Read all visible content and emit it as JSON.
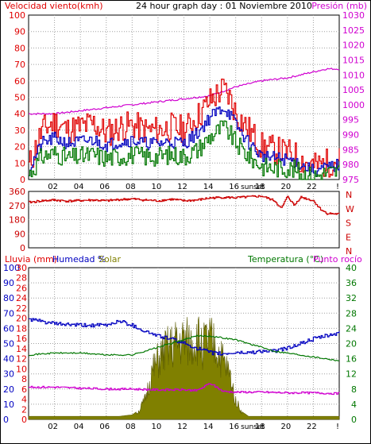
{
  "header": {
    "wind_title": "Velocidad viento(kmh)",
    "page_title": "24 hour graph day : 01 Noviembre 2010",
    "pressure_title": "Presión (mb)"
  },
  "bottom_header": {
    "rain_label": "Lluvia (mm)",
    "humidity_label": "Humedad %",
    "solar_label": "Solar",
    "temperature_label": "Temperatura (°C)",
    "dewpoint_label": "Punto rocío"
  },
  "sunset_label": "sunset",
  "colors": {
    "wind_gust": "#e00000",
    "wind_avg": "#0000c0",
    "wind_min": "#007700",
    "pressure": "#d000d0",
    "direction": "#cc0000",
    "humidity": "#0000c0",
    "temperature": "#007700",
    "dewpoint": "#d000d0",
    "solar": "#808000",
    "grid": "#a0a0a0"
  },
  "chart_data": [
    {
      "type": "line",
      "name": "wind-pressure",
      "title": "Velocidad viento(kmh)",
      "y2label": "Presión (mb)",
      "x_ticks": [
        "02",
        "04",
        "06",
        "08",
        "10",
        "12",
        "14",
        "16",
        "18",
        "20",
        "22",
        "!"
      ],
      "ylim": [
        0,
        100
      ],
      "y_ticks": [
        0,
        10,
        20,
        30,
        40,
        50,
        60,
        70,
        80,
        90,
        100
      ],
      "y2lim": [
        975,
        1030
      ],
      "y2_ticks": [
        975,
        980,
        985,
        990,
        995,
        1000,
        1005,
        1010,
        1015,
        1020,
        1025,
        1030
      ],
      "grid": true,
      "series": [
        {
          "key": "gust",
          "axis": "left",
          "x": [
            0,
            1,
            2,
            3,
            4,
            5,
            6,
            7,
            8,
            9,
            10,
            11,
            12,
            13,
            14,
            15,
            15.5,
            16,
            17,
            18,
            19,
            20,
            20.5,
            21,
            22,
            23,
            24
          ],
          "values": [
            8,
            30,
            35,
            30,
            32,
            34,
            28,
            32,
            33,
            30,
            30,
            32,
            30,
            38,
            48,
            55,
            50,
            40,
            30,
            20,
            18,
            16,
            15,
            12,
            8,
            10,
            12
          ]
        },
        {
          "key": "avg",
          "axis": "left",
          "x": [
            0,
            1,
            2,
            3,
            4,
            5,
            6,
            7,
            8,
            9,
            10,
            11,
            12,
            13,
            14,
            15,
            15.5,
            16,
            17,
            18,
            19,
            20,
            20.5,
            21,
            22,
            23,
            24
          ],
          "values": [
            6,
            22,
            25,
            22,
            23,
            24,
            21,
            23,
            24,
            22,
            22,
            23,
            22,
            28,
            38,
            44,
            40,
            33,
            22,
            14,
            13,
            12,
            11,
            9,
            5,
            7,
            9
          ]
        },
        {
          "key": "min",
          "axis": "left",
          "x": [
            0,
            1,
            2,
            3,
            4,
            5,
            6,
            7,
            8,
            9,
            10,
            11,
            12,
            13,
            14,
            15,
            15.5,
            16,
            17,
            18,
            19,
            20,
            20.5,
            21,
            22,
            23,
            24
          ],
          "values": [
            3,
            14,
            16,
            13,
            14,
            15,
            13,
            14,
            15,
            14,
            14,
            15,
            14,
            18,
            26,
            32,
            28,
            22,
            14,
            8,
            7,
            7,
            6,
            4,
            2,
            4,
            5
          ]
        },
        {
          "key": "pressure",
          "axis": "right",
          "x": [
            0,
            2,
            4,
            6,
            8,
            10,
            12,
            14,
            16,
            18,
            20,
            22,
            23,
            24
          ],
          "values": [
            997,
            997,
            998,
            999,
            1000,
            1001,
            1002,
            1003,
            1006,
            1008,
            1009,
            1011,
            1012,
            1012
          ]
        }
      ]
    },
    {
      "type": "line",
      "name": "wind-direction",
      "x_ticks": [],
      "ylim": [
        0,
        360
      ],
      "y_ticks": [
        0,
        90,
        180,
        270,
        360
      ],
      "y2_ticks": [
        "N",
        "W",
        "S",
        "E",
        "N"
      ],
      "grid": true,
      "series": [
        {
          "key": "direction",
          "x": [
            0,
            1,
            2,
            3,
            4,
            5,
            6,
            7,
            8,
            9,
            10,
            11,
            12,
            13,
            14,
            15,
            16,
            17,
            18,
            19,
            19.5,
            20,
            20.5,
            21,
            22,
            22.5,
            23,
            24
          ],
          "values": [
            290,
            300,
            305,
            298,
            302,
            305,
            300,
            308,
            312,
            305,
            300,
            310,
            300,
            305,
            318,
            322,
            320,
            325,
            330,
            300,
            250,
            330,
            270,
            325,
            300,
            250,
            220,
            215
          ]
        }
      ]
    },
    {
      "type": "line",
      "name": "rain-humidity-temperature",
      "title": "Lluvia (mm)",
      "x_ticks": [
        "02",
        "04",
        "06",
        "08",
        "10",
        "12",
        "14",
        "16",
        "18",
        "20",
        "22",
        "!"
      ],
      "ylim": [
        0,
        100
      ],
      "y_ticks": [
        0,
        10,
        20,
        30,
        40,
        50,
        60,
        70,
        80,
        90,
        100
      ],
      "rain_ticks": [
        0,
        2,
        4,
        6,
        8,
        10,
        12,
        14,
        16,
        18,
        20,
        22,
        24,
        26,
        28,
        30
      ],
      "y2lim": [
        0,
        40
      ],
      "y2_ticks": [
        0,
        4,
        8,
        12,
        16,
        20,
        24,
        28,
        32,
        36,
        40
      ],
      "grid": true,
      "series": [
        {
          "key": "humidity",
          "axis": "left",
          "x": [
            0,
            2,
            4,
            6,
            7,
            8,
            9,
            10,
            11,
            12,
            13,
            14,
            15,
            16,
            17,
            18,
            19,
            20,
            21,
            22,
            23,
            24
          ],
          "values": [
            66,
            63,
            62,
            62,
            65,
            62,
            58,
            55,
            53,
            50,
            47,
            44,
            43,
            44,
            44,
            45,
            45,
            47,
            50,
            53,
            55,
            57
          ]
        },
        {
          "key": "temperature",
          "axis": "right",
          "x": [
            0,
            2,
            4,
            6,
            8,
            9,
            10,
            11,
            12,
            13,
            14,
            15,
            16,
            17,
            18,
            19,
            20,
            21,
            22,
            23,
            24
          ],
          "values": [
            17,
            17.5,
            17.5,
            17,
            17,
            18,
            19,
            20,
            21,
            22,
            22,
            21.5,
            21,
            20,
            19,
            18,
            17.5,
            17,
            16.5,
            16,
            15.5
          ]
        },
        {
          "key": "dewpoint",
          "axis": "right",
          "x": [
            0,
            2,
            4,
            6,
            8,
            10,
            12,
            13,
            14,
            15,
            16,
            17,
            18,
            20,
            22,
            24
          ],
          "values": [
            8.5,
            8.5,
            8.2,
            8,
            8,
            7.8,
            7.8,
            7.6,
            9.5,
            7.4,
            7.2,
            7.2,
            7.2,
            7,
            7,
            6.8
          ]
        },
        {
          "key": "solar",
          "axis": "left",
          "x": [
            0,
            7,
            8,
            8.5,
            9,
            9.5,
            10,
            10.5,
            11,
            11.5,
            12,
            12.5,
            13,
            13.5,
            14,
            14.5,
            15,
            15.5,
            16,
            16.5,
            17,
            24
          ],
          "values": [
            2,
            2,
            3,
            6,
            15,
            35,
            45,
            52,
            55,
            58,
            60,
            58,
            62,
            58,
            60,
            55,
            45,
            35,
            15,
            5,
            2,
            2
          ]
        }
      ]
    }
  ]
}
